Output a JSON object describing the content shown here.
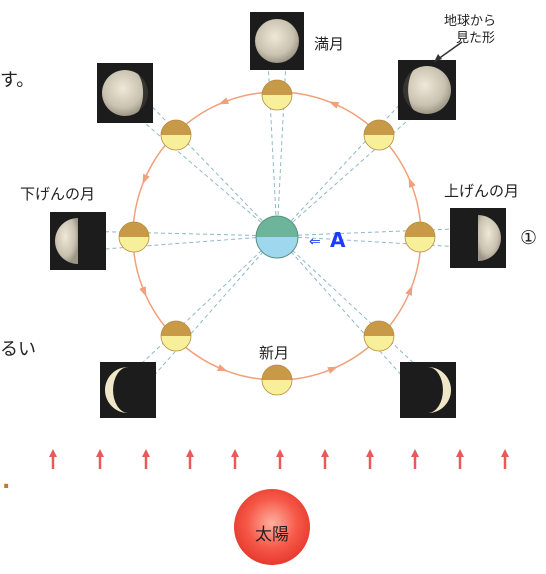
{
  "labels": {
    "full_moon": "満月",
    "new_moon": "新月",
    "first_quarter": "上げんの月",
    "last_quarter": "下げんの月",
    "seen_from_earth_line1": "地球から",
    "seen_from_earth_line2": "見た形",
    "earth_marker": "A",
    "arrow_glyph": "⇐",
    "sun": "太陽",
    "circle_number": "①"
  },
  "edge_text": {
    "top_left": "す。",
    "mid_left": "るい",
    "bottom_left": "."
  },
  "colors": {
    "orbit": "#f0a07a",
    "sun_rays": "#e85a5a",
    "sun_fill": "#f25a48",
    "earth_top": "#6cb59a",
    "earth_bottom": "#9fd7ee",
    "moon_lit": "#f7ef9a",
    "moon_dark": "#c89a48",
    "earth_marker": "#1a3cff",
    "dotted": "#8fb8c8"
  }
}
